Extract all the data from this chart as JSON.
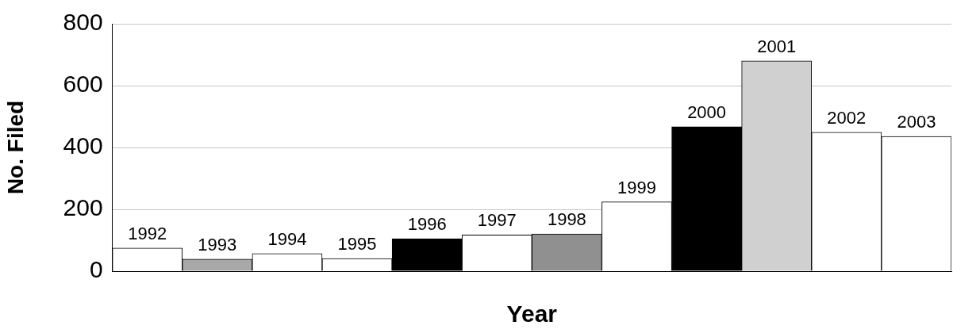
{
  "chart_data": {
    "type": "bar",
    "xlabel": "Year",
    "ylabel": "No. Filed",
    "categories": [
      "1992",
      "1993",
      "1994",
      "1995",
      "1996",
      "1997",
      "1998",
      "1999",
      "2000",
      "2001",
      "2002",
      "2003"
    ],
    "values": [
      75,
      39,
      57,
      41,
      105,
      117,
      120,
      224,
      467,
      680,
      449,
      436
    ],
    "colors": [
      "#ffffff",
      "#a8a8a8",
      "#ffffff",
      "#ffffff",
      "#000000",
      "#ffffff",
      "#909090",
      "#ffffff",
      "#000000",
      "#d0d0d0",
      "#ffffff",
      "#ffffff"
    ],
    "ylim": [
      0,
      800
    ],
    "yticks": [
      0,
      200,
      400,
      600,
      800
    ],
    "grid": "y",
    "legend": false
  }
}
